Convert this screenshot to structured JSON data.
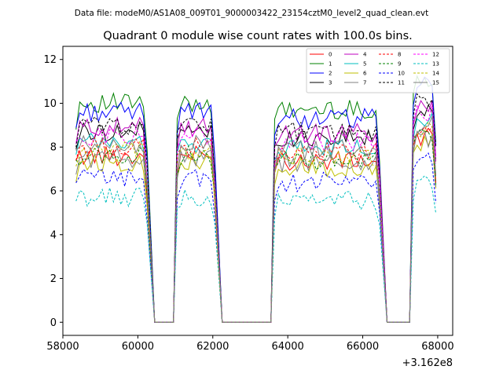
{
  "chart_data": {
    "type": "line",
    "suptitle": "Data file: modeM0/AS1A08_009T01_9000003422_23154cztM0_level2_quad_clean.evt",
    "title": "Quadrant 0 module wise count rates with 100.0s bins.",
    "xlabel": "",
    "ylabel": "",
    "x_offset_label": "+3.162e8",
    "xlim": [
      58000,
      68400
    ],
    "ylim": [
      -0.6,
      12.6
    ],
    "x_ticks": [
      58000,
      60000,
      62000,
      64000,
      66000,
      68000
    ],
    "x_tick_labels": [
      "58000",
      "60000",
      "62000",
      "64000",
      "66000",
      "68000"
    ],
    "y_ticks": [
      0,
      2,
      4,
      6,
      8,
      10,
      12
    ],
    "y_tick_labels": [
      "0",
      "2",
      "4",
      "6",
      "8",
      "10",
      "12"
    ],
    "grid": false,
    "legend_position": "top-right",
    "time_segments": [
      {
        "x": [
          58350,
          58450,
          58550,
          58650,
          58750,
          58850,
          58950,
          59050,
          59150,
          59250,
          59350,
          59450,
          59550,
          59650,
          59750,
          59850,
          59950,
          60050,
          60150,
          60250
        ]
      },
      {
        "x": [
          61050,
          61150,
          61250,
          61350,
          61450,
          61550,
          61650,
          61750,
          61850,
          61950,
          62050
        ]
      },
      {
        "x": [
          63650,
          63750,
          63850,
          63950,
          64050,
          64150,
          64250,
          64350,
          64450,
          64550,
          64650,
          64750,
          64850,
          64950,
          65050,
          65150,
          65250,
          65350,
          65450,
          65550,
          65650,
          65750,
          65850,
          65950,
          66050,
          66150,
          66250,
          66350,
          66450
        ]
      },
      {
        "x": [
          67350,
          67450,
          67550,
          67650,
          67750,
          67850,
          67950
        ]
      }
    ],
    "zero_runs": [
      [
        60450,
        60950
      ],
      [
        62250,
        63550
      ],
      [
        66650,
        67250
      ]
    ],
    "series": [
      {
        "name": "0",
        "color": "#ff0000",
        "dashed": false,
        "level": 7.6
      },
      {
        "name": "1",
        "color": "#008000",
        "dashed": false,
        "level": 10.0
      },
      {
        "name": "2",
        "color": "#0000ff",
        "dashed": false,
        "level": 9.6
      },
      {
        "name": "3",
        "color": "#000000",
        "dashed": false,
        "level": 8.7
      },
      {
        "name": "4",
        "color": "#bf00bf",
        "dashed": false,
        "level": 8.9
      },
      {
        "name": "5",
        "color": "#00bfbf",
        "dashed": false,
        "level": 8.2
      },
      {
        "name": "6",
        "color": "#bfbf00",
        "dashed": false,
        "level": 7.3
      },
      {
        "name": "7",
        "color": "#808080",
        "dashed": false,
        "level": 7.5
      },
      {
        "name": "8",
        "color": "#ff0000",
        "dashed": true,
        "level": 8.0
      },
      {
        "name": "9",
        "color": "#008000",
        "dashed": true,
        "level": 7.6
      },
      {
        "name": "10",
        "color": "#0000ff",
        "dashed": true,
        "level": 6.6
      },
      {
        "name": "11",
        "color": "#000000",
        "dashed": true,
        "level": 9.0
      },
      {
        "name": "12",
        "color": "#ff00ff",
        "dashed": true,
        "level": 8.5
      },
      {
        "name": "13",
        "color": "#00bfbf",
        "dashed": true,
        "level": 5.7
      },
      {
        "name": "14",
        "color": "#bfbf00",
        "dashed": true,
        "level": 7.8
      },
      {
        "name": "15",
        "color": "#808080",
        "dashed": false,
        "level": 8.1
      }
    ]
  }
}
